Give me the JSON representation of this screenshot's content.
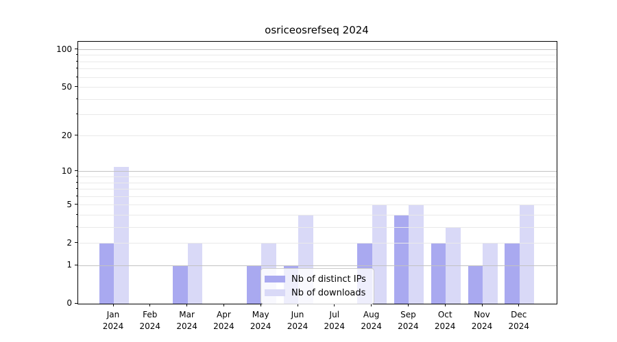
{
  "colors": {
    "ips_bar": "#a9a9f0",
    "downloads_bar": "#d9d9f7",
    "grid_major": "#c2c2c2",
    "grid_minor": "#e9e9e9",
    "spine": "#000000",
    "legend_border": "#cccccc"
  },
  "chart_data": {
    "type": "bar",
    "title": "osriceosrefseq 2024",
    "categories": [
      "Jan",
      "Feb",
      "Mar",
      "Apr",
      "May",
      "Jun",
      "Jul",
      "Aug",
      "Sep",
      "Oct",
      "Nov",
      "Dec"
    ],
    "x_year_label": "2024",
    "series": [
      {
        "name": "Nb of distinct IPs",
        "values": [
          2,
          0,
          1,
          0,
          1,
          1,
          0,
          2,
          4,
          2,
          1,
          2
        ]
      },
      {
        "name": "Nb of downloads",
        "values": [
          11,
          0,
          2,
          0,
          2,
          4,
          0,
          5,
          5,
          3,
          2,
          5
        ]
      }
    ],
    "yscale": "log1p",
    "ylim": [
      0,
      115
    ],
    "y_ticks": [
      {
        "v": 0,
        "label": "0"
      },
      {
        "v": 1,
        "label": "1"
      },
      {
        "v": 2,
        "label": "2"
      },
      {
        "v": 5,
        "label": "5"
      },
      {
        "v": 10,
        "label": "10"
      },
      {
        "v": 20,
        "label": "20"
      },
      {
        "v": 50,
        "label": "50"
      },
      {
        "v": 100,
        "label": "100"
      }
    ],
    "y_major_gridlines": [
      1,
      10,
      100
    ],
    "y_minor_gridlines": [
      2,
      3,
      4,
      5,
      6,
      7,
      8,
      9,
      20,
      30,
      40,
      50,
      60,
      70,
      80,
      90
    ],
    "grid": true,
    "legend_position": "inside lower-center",
    "grid_above_bars": true
  }
}
